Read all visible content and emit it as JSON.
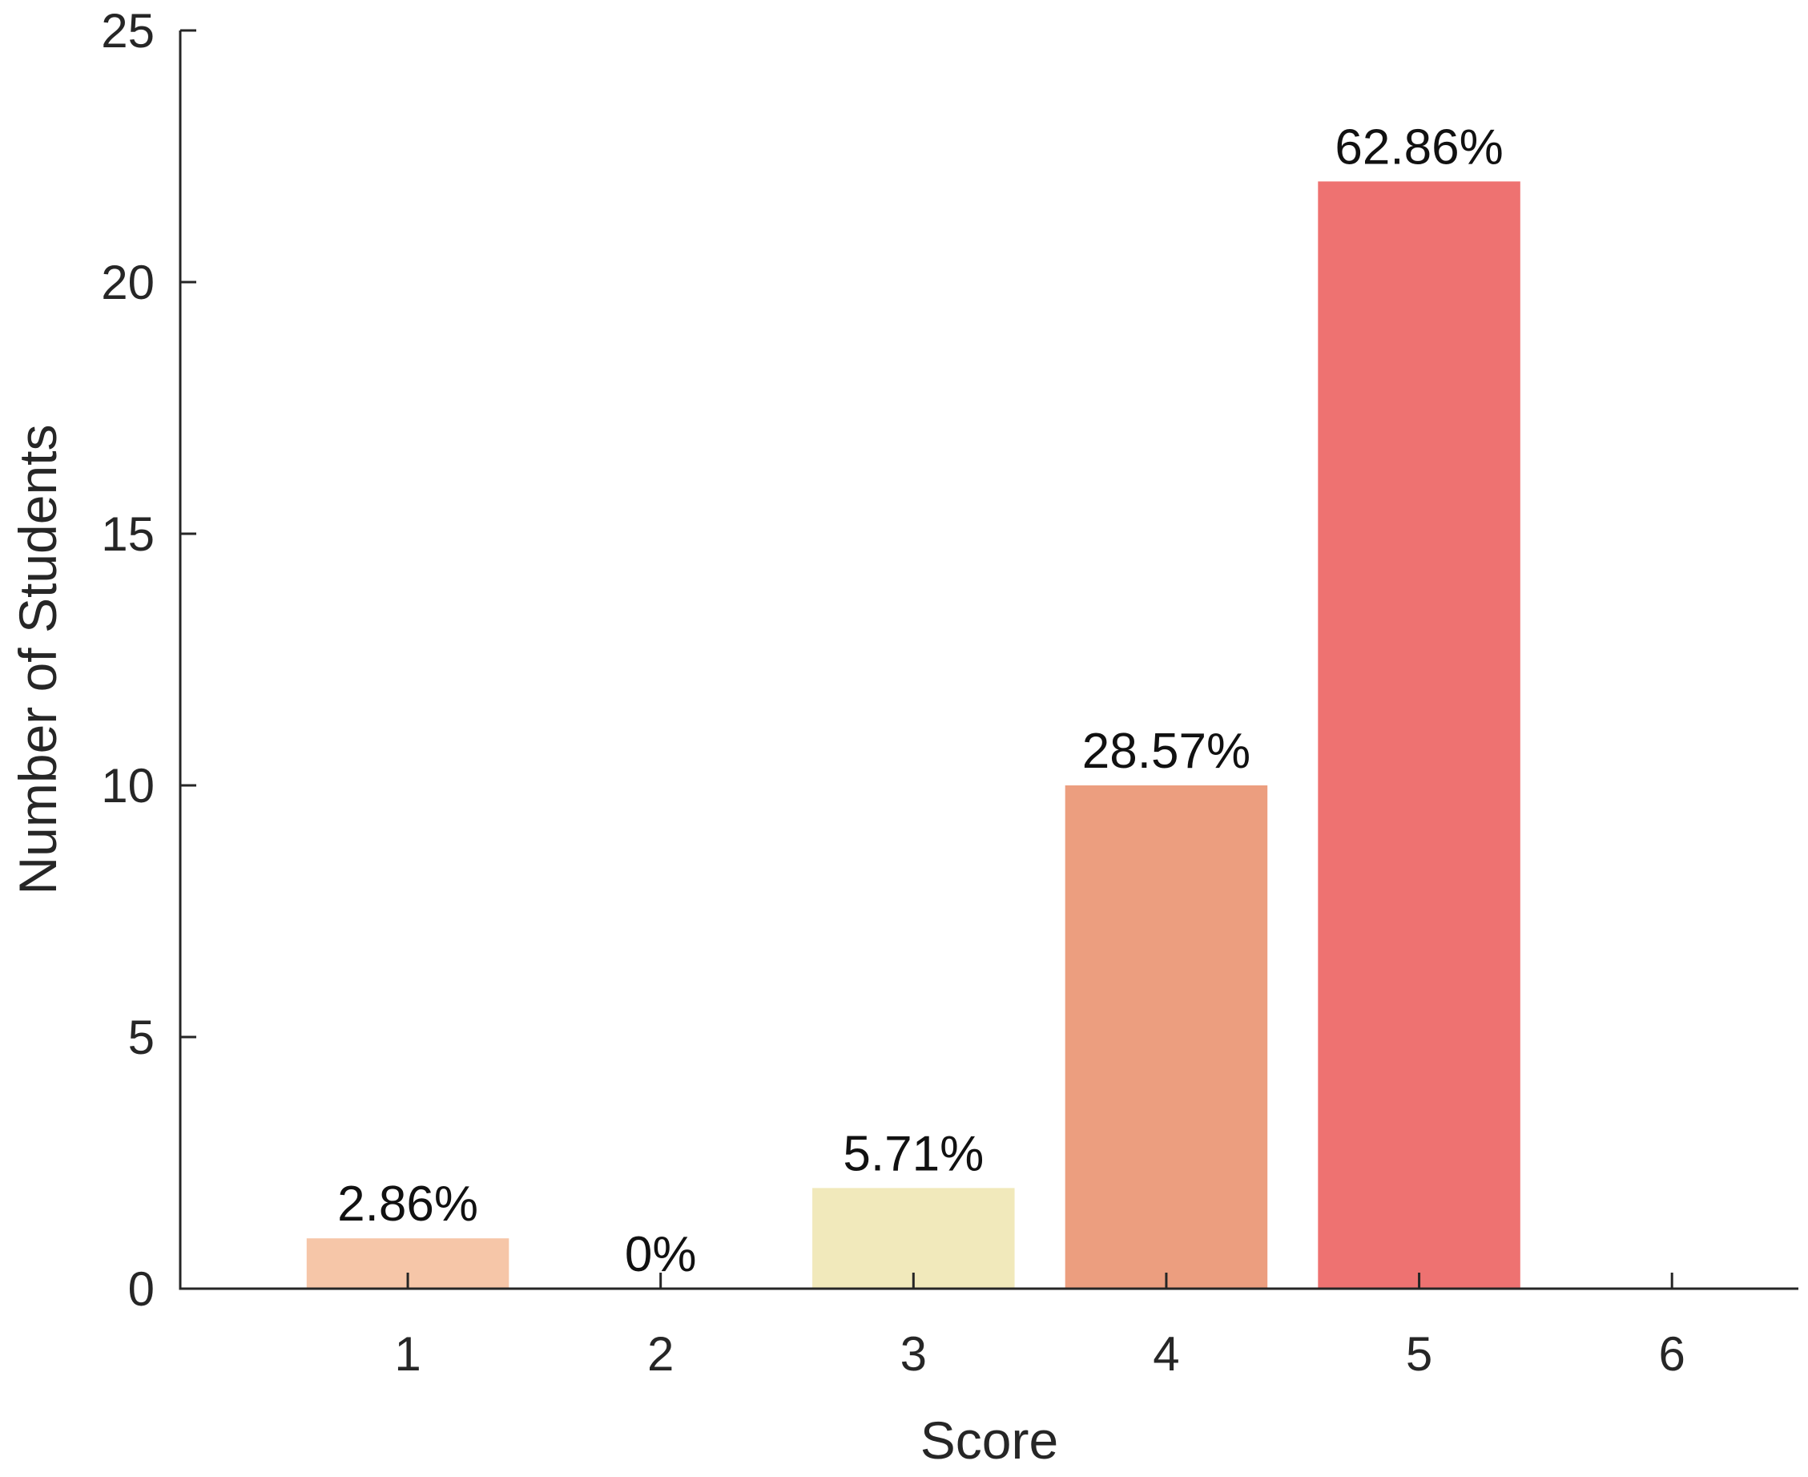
{
  "chart_data": {
    "type": "bar",
    "categories": [
      "1",
      "2",
      "3",
      "4",
      "5",
      "6"
    ],
    "values": [
      1,
      0,
      2,
      10,
      22,
      0
    ],
    "data_labels": [
      "2.86%",
      "0%",
      "5.71%",
      "28.57%",
      "62.86%",
      ""
    ],
    "bar_colors": [
      "#F6C6A8",
      "#F6C6A8",
      "#F1E9BB",
      "#EC9E7F",
      "#EE7271",
      "#EE7271"
    ],
    "xlabel": "Score",
    "ylabel": "Number of Students",
    "xlim": [
      0.1,
      6.5
    ],
    "ylim": [
      0,
      25
    ],
    "yticks": [
      "0",
      "5",
      "10",
      "15",
      "20",
      "25"
    ],
    "grid": false,
    "legend": "none"
  }
}
